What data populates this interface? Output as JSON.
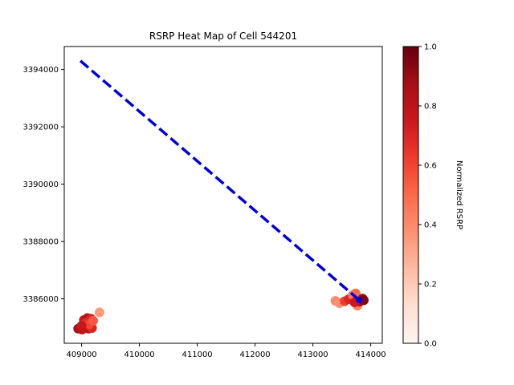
{
  "chart_data": {
    "type": "scatter",
    "title": "RSRP Heat Map of Cell 544201",
    "xlabel": "",
    "ylabel": "",
    "xlim": [
      408700,
      414200
    ],
    "ylim": [
      3384450,
      3394800
    ],
    "x_ticks": [
      409000,
      410000,
      411000,
      412000,
      413000,
      414000
    ],
    "y_ticks": [
      3386000,
      3388000,
      3390000,
      3392000,
      3394000
    ],
    "x_tick_labels": [
      "409000",
      "410000",
      "411000",
      "412000",
      "413000",
      "414000"
    ],
    "y_tick_labels": [
      "3386000",
      "3388000",
      "3390000",
      "3392000",
      "3394000"
    ],
    "grid": false,
    "colormap": "Reds",
    "colorbar": {
      "label": "Normalized RSRP",
      "range": [
        0,
        1
      ],
      "ticks": [
        0.0,
        0.2,
        0.4,
        0.6,
        0.8,
        1.0
      ],
      "tick_labels": [
        "0.0",
        "0.2",
        "0.4",
        "0.6",
        "0.8",
        "1.0"
      ]
    },
    "points": [
      {
        "x": 408940,
        "y": 3384960,
        "v": 0.85
      },
      {
        "x": 409010,
        "y": 3384930,
        "v": 0.8
      },
      {
        "x": 409060,
        "y": 3384990,
        "v": 0.75
      },
      {
        "x": 409120,
        "y": 3384960,
        "v": 0.8
      },
      {
        "x": 409180,
        "y": 3384980,
        "v": 0.7
      },
      {
        "x": 409040,
        "y": 3385260,
        "v": 0.78
      },
      {
        "x": 409100,
        "y": 3385330,
        "v": 0.82
      },
      {
        "x": 409160,
        "y": 3385310,
        "v": 0.72
      },
      {
        "x": 409070,
        "y": 3385160,
        "v": 0.68
      },
      {
        "x": 409130,
        "y": 3385110,
        "v": 0.6
      },
      {
        "x": 409200,
        "y": 3385240,
        "v": 0.55
      },
      {
        "x": 409310,
        "y": 3385530,
        "v": 0.35
      },
      {
        "x": 409000,
        "y": 3385060,
        "v": 0.76
      },
      {
        "x": 413390,
        "y": 3385930,
        "v": 0.4
      },
      {
        "x": 413460,
        "y": 3385850,
        "v": 0.38
      },
      {
        "x": 413550,
        "y": 3385920,
        "v": 0.62
      },
      {
        "x": 413620,
        "y": 3385990,
        "v": 0.7
      },
      {
        "x": 413690,
        "y": 3386130,
        "v": 0.45
      },
      {
        "x": 413740,
        "y": 3386190,
        "v": 0.5
      },
      {
        "x": 413770,
        "y": 3385760,
        "v": 0.42
      },
      {
        "x": 413810,
        "y": 3385900,
        "v": 0.85
      },
      {
        "x": 413860,
        "y": 3386010,
        "v": 0.9
      },
      {
        "x": 413880,
        "y": 3385950,
        "v": 0.95
      },
      {
        "x": 413720,
        "y": 3385880,
        "v": 0.75
      }
    ],
    "line": {
      "style": "dashed",
      "color": "#0000dd",
      "x": [
        408980,
        413800
      ],
      "y": [
        3394300,
        3385960
      ]
    },
    "marker": {
      "x": 413800,
      "y": 3385960,
      "color": "#0000dd"
    }
  }
}
